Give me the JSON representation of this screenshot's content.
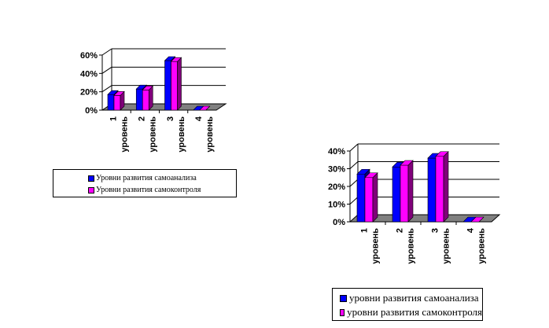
{
  "chart_data": [
    {
      "type": "bar",
      "categories": [
        "1 уровень",
        "2 уровень",
        "3 уровень",
        "4 уровень"
      ],
      "series": [
        {
          "name": "Уровни развития самоанализа",
          "values": [
            17,
            23,
            54,
            0
          ]
        },
        {
          "name": "Уровни развития самоконтроля",
          "values": [
            16,
            22,
            53,
            0
          ]
        }
      ],
      "yticks": [
        "0%",
        "20%",
        "40%",
        "60%"
      ],
      "ylim": [
        0,
        60
      ],
      "grid": true,
      "legend_position": "bottom"
    },
    {
      "type": "bar",
      "categories": [
        "1 уровень",
        "2 уровень",
        "3 уровень",
        "4 уровень"
      ],
      "series": [
        {
          "name": "уровни развития самоанализа",
          "values": [
            27,
            31,
            36,
            0
          ]
        },
        {
          "name": "уровни развития самоконтроля",
          "values": [
            25,
            32,
            37,
            0
          ]
        }
      ],
      "yticks": [
        "0%",
        "10%",
        "20%",
        "30%",
        "40%"
      ],
      "ylim": [
        0,
        40
      ],
      "grid": true,
      "legend_position": "bottom"
    }
  ],
  "colors": {
    "series1": "#0000ff",
    "series1_dark": "#00007a",
    "series2": "#ff00ff",
    "series2_dark": "#80007a",
    "floor": "#808080",
    "grid": "#000000"
  }
}
